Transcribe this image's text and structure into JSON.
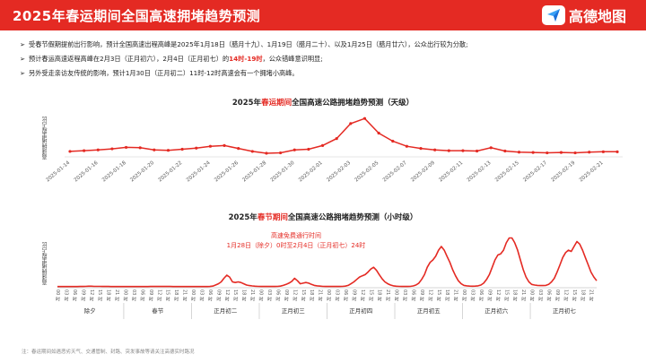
{
  "header": {
    "title": "2025年春运期间全国高速拥堵趋势预测",
    "logo_text": "高德地图"
  },
  "bullets": [
    {
      "pre": "受春节假期提前出行影响，预计全国高速出程高峰是2025年1月18日（腊月十九）、1月19日（腊月二十）、以及1月25日（腊月廿六），公众出行较为分散;",
      "hl": "",
      "post": ""
    },
    {
      "pre": "预计春运高速返程高峰在2月3日（正月初六），2月4日（正月初七）的",
      "hl": "14时-19时",
      "post": "，公众错峰意识明显;"
    },
    {
      "pre": "另外受走亲访友传统的影响，预计1月30日（正月初二）11时-12时高速会有一个拥堵小高峰。",
      "hl": "",
      "post": ""
    }
  ],
  "chart1_title": {
    "pre": "2025年",
    "hl": "春运期间",
    "post": "全国高速公路拥堵趋势预测（天级）"
  },
  "chart2_title": {
    "pre": "2025年",
    "hl": "春节期间",
    "post": "全国高速公路拥堵趋势预测（小时级）"
  },
  "ylabel": "高速拥堵里程占比",
  "annotation": {
    "line1": "高速免费通行时间",
    "line2": "1月28日（除夕）0时至2月4日（正月初七）24时"
  },
  "footnote": "注：春运期间如遇恶劣天气、交通管制、封路、突发事故等请关注高德实时路况",
  "colors": {
    "accent": "#e42a23",
    "text": "#333333"
  },
  "chart_data": [
    {
      "type": "line",
      "x": [
        "2025-01-14",
        "2025-01-15",
        "2025-01-16",
        "2025-01-17",
        "2025-01-18",
        "2025-01-19",
        "2025-01-20",
        "2025-01-21",
        "2025-01-22",
        "2025-01-23",
        "2025-01-24",
        "2025-01-25",
        "2025-01-26",
        "2025-01-27",
        "2025-01-28",
        "2025-01-29",
        "2025-01-30",
        "2025-01-31",
        "2025-02-01",
        "2025-02-02",
        "2025-02-03",
        "2025-02-04",
        "2025-02-05",
        "2025-02-06",
        "2025-02-07",
        "2025-02-08",
        "2025-02-09",
        "2025-02-10",
        "2025-02-11",
        "2025-02-12",
        "2025-02-13",
        "2025-02-14",
        "2025-02-15",
        "2025-02-16",
        "2025-02-17",
        "2025-02-18",
        "2025-02-19",
        "2025-02-20",
        "2025-02-21",
        "2025-02-22"
      ],
      "xticks": [
        "2025-01-14",
        "2025-01-16",
        "2025-01-18",
        "2025-01-20",
        "2025-01-22",
        "2025-01-24",
        "2025-01-26",
        "2025-01-28",
        "2025-01-30",
        "2025-02-01",
        "2025-02-03",
        "2025-02-05",
        "2025-02-07",
        "2025-02-09",
        "2025-02-11",
        "2025-02-13",
        "2025-02-15",
        "2025-02-17",
        "2025-02-19",
        "2025-02-21"
      ],
      "values": [
        1.0,
        1.2,
        1.4,
        1.7,
        2.1,
        2.0,
        1.4,
        1.3,
        1.6,
        1.9,
        2.4,
        2.6,
        1.8,
        1.0,
        0.5,
        0.6,
        1.4,
        1.6,
        2.6,
        4.5,
        8.6,
        10.0,
        6.0,
        3.8,
        2.4,
        1.8,
        1.4,
        1.2,
        1.2,
        1.1,
        2.0,
        1.1,
        0.8,
        0.7,
        0.6,
        0.7,
        0.6,
        0.8,
        0.9,
        0.9
      ],
      "ylim": [
        0,
        12
      ]
    },
    {
      "type": "line",
      "hours_per_day": 24,
      "days": [
        "除夕",
        "春节",
        "正月初二",
        "正月初三",
        "正月初四",
        "正月初五",
        "正月初六",
        "正月初七"
      ],
      "hour_tick_labels": [
        "00 时",
        "03 时",
        "06 时",
        "09 时",
        "12 时",
        "15 时",
        "18 时",
        "21 时"
      ],
      "values": [
        0.2,
        0.2,
        0.2,
        0.2,
        0.2,
        0.2,
        0.2,
        0.2,
        0.3,
        0.3,
        0.4,
        0.5,
        0.5,
        0.4,
        0.4,
        0.4,
        0.3,
        0.3,
        0.3,
        0.2,
        0.2,
        0.2,
        0.2,
        0.2,
        0.2,
        0.2,
        0.2,
        0.2,
        0.2,
        0.2,
        0.2,
        0.2,
        0.2,
        0.3,
        0.3,
        0.3,
        0.3,
        0.3,
        0.3,
        0.3,
        0.3,
        0.2,
        0.2,
        0.2,
        0.2,
        0.2,
        0.2,
        0.2,
        0.2,
        0.2,
        0.2,
        0.2,
        0.2,
        0.2,
        0.3,
        0.6,
        1.5,
        2.5,
        4.0,
        7.0,
        9.5,
        8.0,
        4.0,
        3.5,
        4.0,
        3.5,
        2.5,
        1.5,
        1.0,
        0.7,
        0.5,
        0.4,
        0.3,
        0.3,
        0.3,
        0.3,
        0.3,
        0.3,
        0.4,
        0.6,
        1.2,
        2.0,
        3.0,
        4.5,
        7.0,
        5.0,
        2.5,
        3.0,
        3.5,
        3.0,
        2.0,
        1.2,
        0.8,
        0.6,
        0.4,
        0.3,
        0.3,
        0.3,
        0.3,
        0.3,
        0.3,
        0.4,
        0.6,
        1.2,
        2.5,
        4.0,
        6.0,
        8.0,
        9.0,
        10.0,
        12.0,
        14.5,
        16.0,
        13.5,
        10.0,
        6.5,
        4.0,
        2.5,
        1.5,
        0.8,
        0.5,
        0.4,
        0.3,
        0.3,
        0.3,
        0.4,
        0.7,
        1.5,
        3.0,
        6.0,
        10.0,
        16.0,
        20.0,
        22.0,
        25.0,
        30.0,
        33.0,
        30.0,
        25.0,
        20.0,
        14.0,
        9.0,
        5.0,
        2.5,
        1.2,
        0.8,
        0.6,
        0.5,
        0.6,
        0.8,
        1.5,
        3.0,
        6.0,
        10.0,
        16.0,
        22.0,
        26.0,
        27.0,
        30.0,
        36.0,
        40.0,
        40.0,
        36.0,
        30.0,
        22.0,
        14.0,
        8.0,
        4.0,
        2.0,
        1.5,
        1.2,
        1.0,
        1.0,
        1.2,
        2.0,
        4.0,
        7.0,
        12.0,
        18.0,
        24.0,
        28.0,
        30.0,
        29.0,
        33.0,
        37.0,
        35.0,
        30.0,
        24.0,
        18.0,
        12.0,
        8.0,
        5.0
      ],
      "ylim": [
        0,
        44
      ]
    }
  ]
}
